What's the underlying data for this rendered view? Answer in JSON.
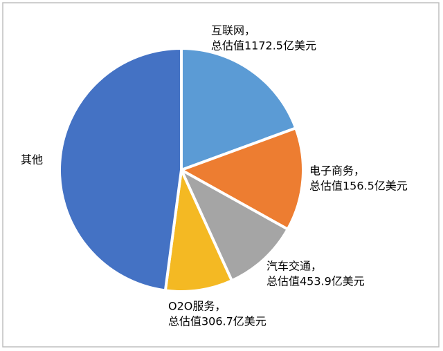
{
  "chart_data": {
    "type": "pie",
    "categories": [
      "互联网，",
      "电子商务，",
      "汽车交通，",
      "O2O服务，",
      "其他"
    ],
    "details": [
      "总估值1172.5亿美元",
      "总估值156.5亿美元",
      "总估值453.9亿美元",
      "总估值306.7亿美元",
      null
    ],
    "values": [
      19.4,
      13.7,
      10.1,
      8.9,
      47.9
    ],
    "colors": [
      "#5b9bd5",
      "#ed7d31",
      "#a5a5a5",
      "#f4b923",
      "#4472c4"
    ]
  }
}
